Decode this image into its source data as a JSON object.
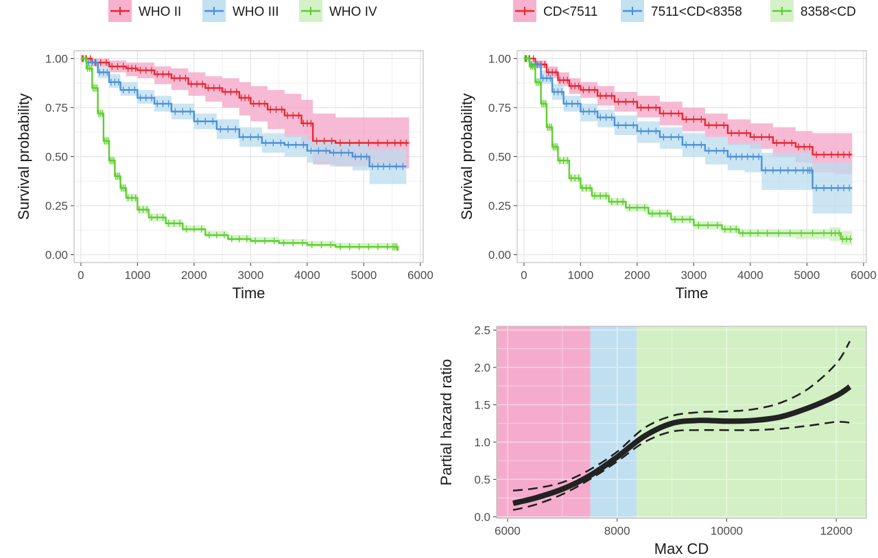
{
  "colors": {
    "red": "#e8262f",
    "blue": "#4a90d9",
    "green": "#5bd02c",
    "red_band": "#f4a3c6",
    "blue_band": "#b9dcef",
    "green_band": "#cdeebd",
    "panel_border": "#bdbdbd",
    "grid": "#ebebeb",
    "curve": "#222222"
  },
  "chart_data": [
    {
      "type": "line",
      "subtype": "kaplan-meier",
      "xlabel": "Time",
      "ylabel": "Survival probability",
      "xlim": [
        -120,
        6050
      ],
      "ylim": [
        -0.04,
        1.04
      ],
      "xticks": [
        0,
        1000,
        2000,
        3000,
        4000,
        5000,
        6000
      ],
      "xtick_labels": [
        "0",
        "1000",
        "2000",
        "3000",
        "4000",
        "5000",
        "6000"
      ],
      "yticks": [
        0,
        0.25,
        0.5,
        0.75,
        1
      ],
      "ytick_labels": [
        "0.00",
        "0.25",
        "0.50",
        "0.75",
        "1.00"
      ],
      "grid": true,
      "legend": {
        "position": "top",
        "entries": [
          "WHO II",
          "WHO III",
          "WHO IV"
        ]
      },
      "series": [
        {
          "name": "WHO II",
          "color": "red",
          "x": [
            0,
            200,
            500,
            800,
            1000,
            1300,
            1600,
            1900,
            2200,
            2500,
            2800,
            3000,
            3300,
            3600,
            3900,
            4100,
            4500,
            5000,
            5500,
            5800
          ],
          "y": [
            1.0,
            0.98,
            0.96,
            0.95,
            0.94,
            0.92,
            0.9,
            0.87,
            0.85,
            0.83,
            0.8,
            0.77,
            0.74,
            0.71,
            0.67,
            0.58,
            0.57,
            0.57,
            0.57,
            0.57
          ],
          "lower": [
            1.0,
            0.96,
            0.93,
            0.91,
            0.9,
            0.87,
            0.84,
            0.81,
            0.78,
            0.75,
            0.71,
            0.68,
            0.64,
            0.6,
            0.55,
            0.46,
            0.45,
            0.45,
            0.44,
            0.44
          ],
          "upper": [
            1.0,
            1.0,
            0.99,
            0.98,
            0.98,
            0.96,
            0.95,
            0.93,
            0.91,
            0.9,
            0.88,
            0.86,
            0.84,
            0.82,
            0.79,
            0.72,
            0.7,
            0.7,
            0.7,
            0.7
          ]
        },
        {
          "name": "WHO III",
          "color": "blue",
          "x": [
            0,
            100,
            300,
            500,
            700,
            1000,
            1300,
            1600,
            2000,
            2400,
            2800,
            3200,
            3600,
            4000,
            4400,
            4800,
            5100,
            5400,
            5750
          ],
          "y": [
            1.0,
            0.98,
            0.93,
            0.88,
            0.84,
            0.8,
            0.77,
            0.73,
            0.68,
            0.64,
            0.6,
            0.57,
            0.56,
            0.53,
            0.52,
            0.5,
            0.45,
            0.45,
            0.45
          ],
          "lower": [
            1.0,
            0.97,
            0.9,
            0.85,
            0.81,
            0.77,
            0.73,
            0.69,
            0.64,
            0.59,
            0.55,
            0.52,
            0.5,
            0.47,
            0.45,
            0.43,
            0.36,
            0.36,
            0.36
          ],
          "upper": [
            1.0,
            1.0,
            0.96,
            0.92,
            0.88,
            0.84,
            0.81,
            0.77,
            0.72,
            0.69,
            0.65,
            0.62,
            0.61,
            0.59,
            0.58,
            0.57,
            0.54,
            0.54,
            0.54
          ]
        },
        {
          "name": "WHO IV",
          "color": "green",
          "x": [
            0,
            100,
            200,
            300,
            400,
            500,
            600,
            700,
            800,
            1000,
            1200,
            1500,
            1800,
            2200,
            2600,
            3000,
            3500,
            4000,
            4500,
            5000,
            5500,
            5600
          ],
          "y": [
            1.0,
            0.95,
            0.85,
            0.72,
            0.58,
            0.48,
            0.4,
            0.34,
            0.29,
            0.23,
            0.19,
            0.16,
            0.13,
            0.1,
            0.08,
            0.07,
            0.06,
            0.05,
            0.04,
            0.04,
            0.04,
            0.02
          ],
          "lower": [
            1.0,
            0.94,
            0.83,
            0.7,
            0.56,
            0.46,
            0.38,
            0.32,
            0.27,
            0.21,
            0.17,
            0.14,
            0.12,
            0.09,
            0.07,
            0.06,
            0.05,
            0.04,
            0.03,
            0.03,
            0.02,
            0.0
          ],
          "upper": [
            1.0,
            0.97,
            0.87,
            0.74,
            0.6,
            0.5,
            0.42,
            0.36,
            0.31,
            0.25,
            0.21,
            0.18,
            0.15,
            0.12,
            0.1,
            0.09,
            0.08,
            0.07,
            0.06,
            0.06,
            0.06,
            0.05
          ]
        }
      ]
    },
    {
      "type": "line",
      "subtype": "kaplan-meier",
      "xlabel": "Time",
      "ylabel": "Survival probability",
      "xlim": [
        -120,
        6050
      ],
      "ylim": [
        -0.04,
        1.04
      ],
      "xticks": [
        0,
        1000,
        2000,
        3000,
        4000,
        5000,
        6000
      ],
      "xtick_labels": [
        "0",
        "1000",
        "2000",
        "3000",
        "4000",
        "5000",
        "6000"
      ],
      "yticks": [
        0,
        0.25,
        0.5,
        0.75,
        1
      ],
      "ytick_labels": [
        "0.00",
        "0.25",
        "0.50",
        "0.75",
        "1.00"
      ],
      "grid": true,
      "legend": {
        "position": "top",
        "entries": [
          "CD<7511",
          "7511<CD<8358",
          "8358<CD"
        ]
      },
      "series": [
        {
          "name": "CD<7511",
          "color": "red",
          "x": [
            0,
            200,
            400,
            600,
            800,
            1000,
            1300,
            1600,
            2000,
            2400,
            2800,
            3200,
            3600,
            4000,
            4400,
            4800,
            5100,
            5500,
            5800
          ],
          "y": [
            1.0,
            0.97,
            0.93,
            0.89,
            0.86,
            0.84,
            0.81,
            0.78,
            0.75,
            0.72,
            0.69,
            0.66,
            0.62,
            0.6,
            0.57,
            0.55,
            0.51,
            0.51,
            0.51
          ],
          "lower": [
            1.0,
            0.95,
            0.9,
            0.86,
            0.82,
            0.8,
            0.76,
            0.73,
            0.7,
            0.66,
            0.63,
            0.6,
            0.56,
            0.54,
            0.5,
            0.47,
            0.42,
            0.41,
            0.41
          ],
          "upper": [
            1.0,
            0.99,
            0.96,
            0.93,
            0.9,
            0.88,
            0.86,
            0.83,
            0.81,
            0.78,
            0.75,
            0.72,
            0.69,
            0.67,
            0.65,
            0.63,
            0.62,
            0.62,
            0.62
          ]
        },
        {
          "name": "7511<CD<8358",
          "color": "blue",
          "x": [
            0,
            100,
            300,
            500,
            700,
            1000,
            1300,
            1600,
            2000,
            2400,
            2800,
            3200,
            3600,
            3900,
            4200,
            4600,
            5000,
            5100,
            5500,
            5800
          ],
          "y": [
            1.0,
            0.97,
            0.9,
            0.83,
            0.77,
            0.73,
            0.7,
            0.66,
            0.63,
            0.6,
            0.56,
            0.53,
            0.5,
            0.5,
            0.43,
            0.43,
            0.43,
            0.34,
            0.34,
            0.34
          ],
          "lower": [
            1.0,
            0.95,
            0.87,
            0.79,
            0.73,
            0.68,
            0.65,
            0.61,
            0.57,
            0.54,
            0.5,
            0.46,
            0.43,
            0.42,
            0.33,
            0.33,
            0.33,
            0.21,
            0.21,
            0.21
          ],
          "upper": [
            1.0,
            0.99,
            0.94,
            0.87,
            0.81,
            0.77,
            0.74,
            0.71,
            0.68,
            0.65,
            0.62,
            0.6,
            0.57,
            0.57,
            0.52,
            0.52,
            0.52,
            0.47,
            0.47,
            0.47
          ]
        },
        {
          "name": "8358<CD",
          "color": "green",
          "x": [
            0,
            100,
            200,
            300,
            400,
            500,
            600,
            800,
            1000,
            1200,
            1500,
            1800,
            2200,
            2600,
            3000,
            3500,
            3800,
            4200,
            4800,
            5400,
            5600,
            5800
          ],
          "y": [
            1.0,
            0.96,
            0.88,
            0.77,
            0.65,
            0.55,
            0.48,
            0.39,
            0.34,
            0.3,
            0.27,
            0.24,
            0.21,
            0.18,
            0.15,
            0.13,
            0.11,
            0.11,
            0.11,
            0.11,
            0.08,
            0.08
          ],
          "lower": [
            1.0,
            0.95,
            0.86,
            0.75,
            0.63,
            0.53,
            0.46,
            0.37,
            0.32,
            0.28,
            0.25,
            0.22,
            0.19,
            0.16,
            0.13,
            0.11,
            0.09,
            0.09,
            0.08,
            0.07,
            0.05,
            0.05
          ],
          "upper": [
            1.0,
            0.97,
            0.9,
            0.79,
            0.67,
            0.57,
            0.5,
            0.41,
            0.36,
            0.32,
            0.29,
            0.26,
            0.23,
            0.2,
            0.17,
            0.15,
            0.13,
            0.13,
            0.13,
            0.14,
            0.12,
            0.12
          ]
        }
      ]
    },
    {
      "type": "line",
      "xlabel": "Max CD",
      "ylabel": "Partial hazard ratio",
      "xlim": [
        5800,
        12550
      ],
      "ylim": [
        -0.02,
        2.55
      ],
      "xticks": [
        6000,
        8000,
        10000,
        12000
      ],
      "xtick_labels": [
        "6000",
        "8000",
        "10000",
        "12000"
      ],
      "yticks": [
        0,
        0.5,
        1,
        1.5,
        2,
        2.5
      ],
      "ytick_labels": [
        "0.0",
        "0.5",
        "1.0",
        "1.5",
        "2.0",
        "2.5"
      ],
      "grid": true,
      "regions": [
        {
          "from": 5800,
          "to": 7511,
          "color": "red_band"
        },
        {
          "from": 7511,
          "to": 8358,
          "color": "blue_band"
        },
        {
          "from": 8358,
          "to": 12550,
          "color": "green_band"
        }
      ],
      "x": [
        6100,
        6500,
        7000,
        7500,
        8000,
        8500,
        9000,
        9500,
        10000,
        10500,
        11000,
        11500,
        12000,
        12250
      ],
      "estimate": [
        0.18,
        0.25,
        0.37,
        0.55,
        0.8,
        1.08,
        1.25,
        1.29,
        1.28,
        1.29,
        1.34,
        1.46,
        1.62,
        1.74
      ],
      "lower": [
        0.09,
        0.16,
        0.3,
        0.5,
        0.74,
        1.0,
        1.14,
        1.16,
        1.16,
        1.16,
        1.18,
        1.22,
        1.27,
        1.26
      ],
      "upper": [
        0.35,
        0.38,
        0.46,
        0.63,
        0.87,
        1.19,
        1.35,
        1.4,
        1.41,
        1.44,
        1.53,
        1.72,
        2.05,
        2.35
      ]
    }
  ]
}
